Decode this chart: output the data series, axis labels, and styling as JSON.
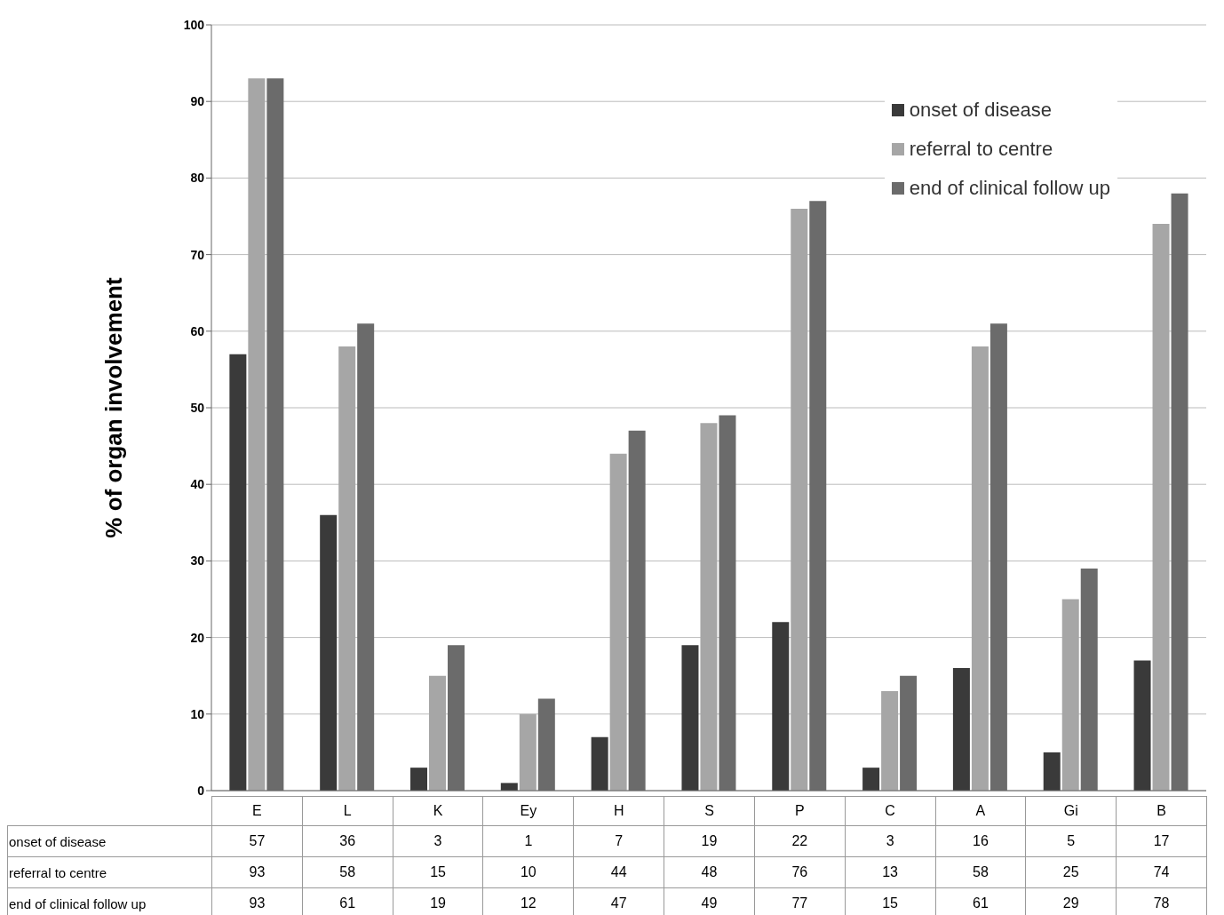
{
  "chart_data": {
    "type": "bar",
    "ylabel": "% of organ involvement",
    "categories": [
      "E",
      "L",
      "K",
      "Ey",
      "H",
      "S",
      "P",
      "C",
      "A",
      "Gi",
      "B"
    ],
    "series": [
      {
        "name": "onset of disease",
        "color": "#3a3a3a",
        "values": [
          57,
          36,
          3,
          1,
          7,
          19,
          22,
          3,
          16,
          5,
          17
        ]
      },
      {
        "name": "referral to centre",
        "color": "#a6a6a6",
        "values": [
          93,
          58,
          15,
          10,
          44,
          48,
          76,
          13,
          58,
          25,
          74
        ]
      },
      {
        "name": "end of clinical follow up",
        "color": "#6b6b6b",
        "values": [
          93,
          61,
          19,
          12,
          47,
          49,
          77,
          15,
          61,
          29,
          78
        ]
      }
    ],
    "ylim": [
      0,
      100
    ],
    "yticks": [
      0,
      10,
      20,
      30,
      40,
      50,
      60,
      70,
      80,
      90,
      100
    ],
    "grid": "y",
    "legend": "top right",
    "data_labels": true
  }
}
